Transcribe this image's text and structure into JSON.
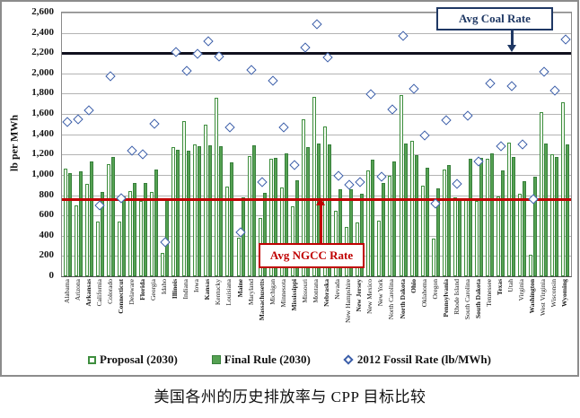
{
  "caption": "美国各州的历史排放率与 CPP 目标比较",
  "annotations": {
    "coal": {
      "label": "Avg Coal Rate",
      "color": "#1f3864",
      "arrow": "down",
      "points_to_value": 2200
    },
    "ngcc": {
      "label": "Avg NGCC Rate",
      "color": "#c00000",
      "arrow": "up",
      "points_to_value": 760
    }
  },
  "chart_data": {
    "type": "bar",
    "title": "",
    "xlabel": "",
    "ylabel": "lb per MWh",
    "ylim": [
      0,
      2600
    ],
    "ytick_step": 200,
    "grid": true,
    "legend_position": "bottom-center",
    "categories": [
      "Alabama",
      "Arizona",
      "Arkansas",
      "California",
      "Colorado",
      "Connecticut",
      "Delaware",
      "Florida",
      "Georgia",
      "Idaho",
      "Illinois",
      "Indiana",
      "Iowa",
      "Kansas",
      "Kentucky",
      "Louisiana",
      "Maine",
      "Maryland",
      "Massachusetts",
      "Michigan",
      "Minnesota",
      "Mississippi",
      "Missouri",
      "Montana",
      "Nebraska",
      "Nevada",
      "New Hampshire",
      "New Jersey",
      "New Mexico",
      "New York",
      "North Carolina",
      "North Dakota",
      "Ohio",
      "Oklahoma",
      "Oregon",
      "Pennsylvania",
      "Rhode Island",
      "South Carolina",
      "South Dakota",
      "Tennessee",
      "Texas",
      "Utah",
      "Virginia",
      "Washington",
      "West Virginia",
      "Wisconsin",
      "Wyoming"
    ],
    "bold_categories": [
      "Arkansas",
      "Connecticut",
      "Florida",
      "Illinois",
      "Kansas",
      "Maine",
      "Massachusetts",
      "Mississippi",
      "Nebraska",
      "New Jersey",
      "North Dakota",
      "Ohio",
      "Pennsylvania",
      "South Dakota",
      "Texas",
      "Washington",
      "Wyoming"
    ],
    "series": [
      {
        "name": "Proposal (2030)",
        "kind": "bar",
        "style": "open",
        "values": [
          1059,
          702,
          910,
          537,
          1108,
          540,
          841,
          740,
          834,
          228,
          1271,
          1531,
          1301,
          1499,
          1763,
          883,
          378,
          1187,
          576,
          1161,
          873,
          692,
          1544,
          1771,
          1479,
          647,
          486,
          531,
          1048,
          549,
          992,
          1783,
          1338,
          895,
          372,
          1052,
          782,
          772,
          741,
          1163,
          791,
          1322,
          810,
          215,
          1620,
          1203,
          1714
        ]
      },
      {
        "name": "Final Rule (2030)",
        "kind": "bar",
        "style": "solid",
        "values": [
          1018,
          1031,
          1130,
          828,
          1174,
          786,
          916,
          919,
          1049,
          771,
          1245,
          1242,
          1283,
          1293,
          1286,
          1121,
          779,
          1287,
          824,
          1169,
          1213,
          945,
          1272,
          1305,
          1296,
          855,
          858,
          812,
          1146,
          918,
          1136,
          1305,
          1190,
          1068,
          871,
          1095,
          771,
          1156,
          1167,
          1211,
          1042,
          1179,
          934,
          983,
          1305,
          1176,
          1299
        ]
      },
      {
        "name": "2012 Fossil Rate (lb/MWh)",
        "kind": "scatter",
        "marker": "open-diamond",
        "values": [
          1518,
          1552,
          1634,
          698,
          1973,
          765,
          1234,
          1199,
          1500,
          339,
          2208,
          2021,
          2195,
          2319,
          2166,
          1466,
          437,
          2031,
          925,
          1928,
          1470,
          1093,
          2258,
          2481,
          2161,
          988,
          905,
          932,
          1798,
          983,
          1646,
          2368,
          1850,
          1387,
          717,
          1540,
          907,
          1587,
          1135,
          1903,
          1284,
          1874,
          1297,
          763,
          2019,
          1827,
          2331
        ]
      }
    ],
    "reference_lines": [
      {
        "name": "Avg Coal Rate",
        "value": 2200,
        "color": "#11111e",
        "thickness": 3
      },
      {
        "name": "Avg NGCC Rate",
        "value": 760,
        "color": "#c00000",
        "thickness": 3
      }
    ]
  },
  "colors": {
    "bar_border": "#3e8e3e",
    "proposal_fill": "#f4faf0",
    "final_fill": "#55a152",
    "diamond": "#3b5ea9",
    "gridline": "#b3b3b3",
    "frame_border": "#8c8c8c",
    "coal_line": "#11111e",
    "ngcc_line": "#c00000"
  }
}
